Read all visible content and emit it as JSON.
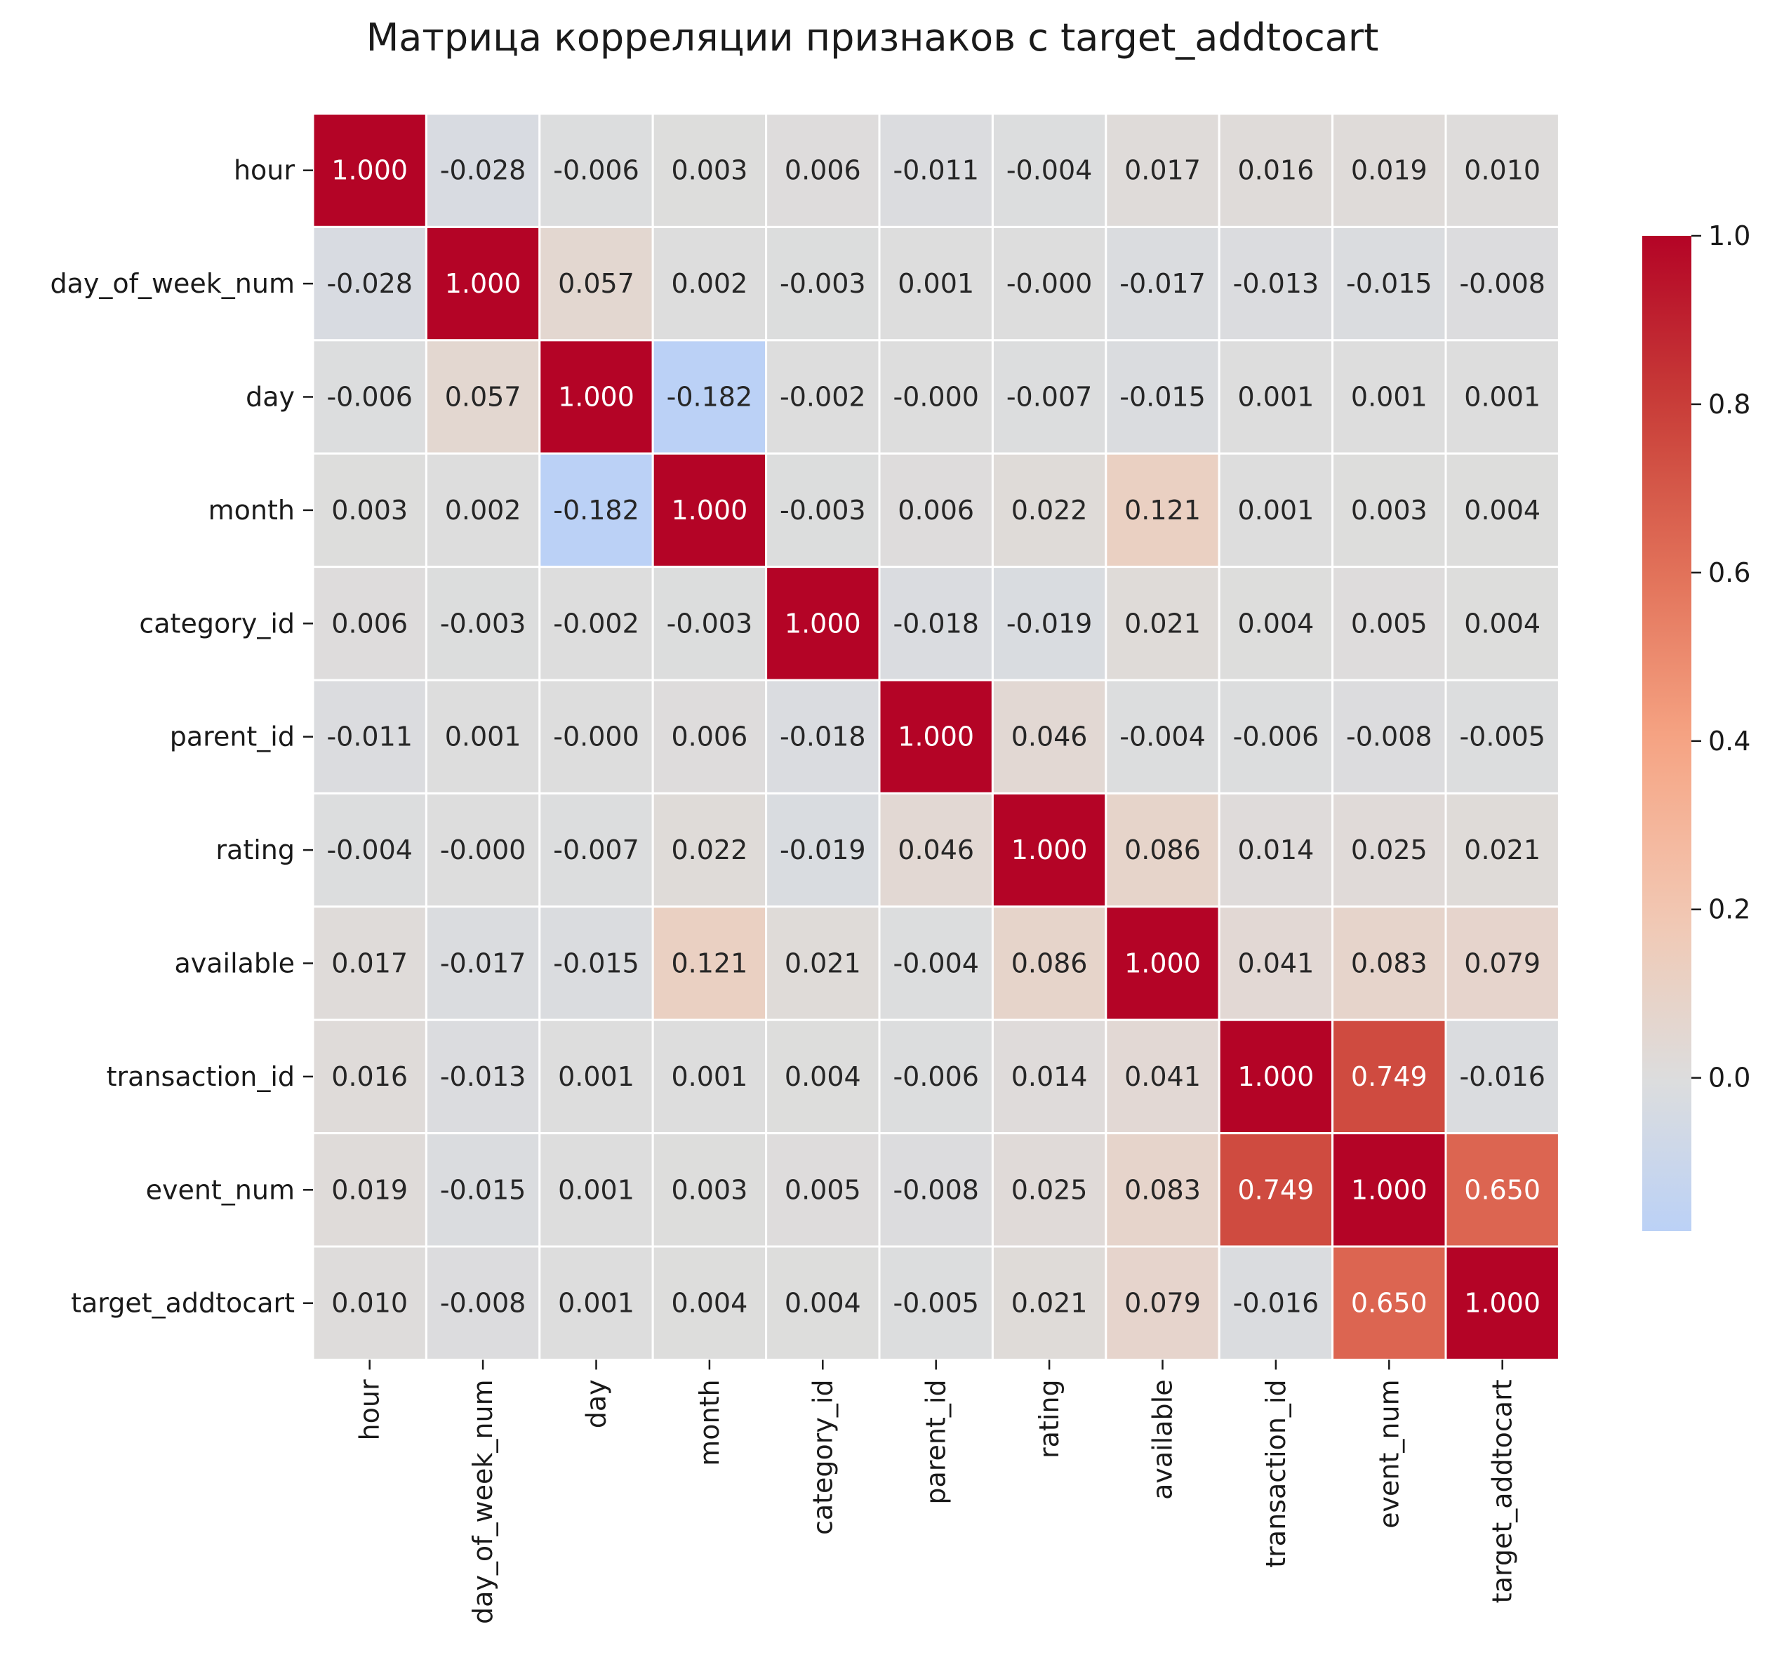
{
  "chart_data": {
    "type": "heatmap",
    "title": "Матрица корреляции признаков с target_addtocart",
    "labels": [
      "hour",
      "day_of_week_num",
      "day",
      "month",
      "category_id",
      "parent_id",
      "rating",
      "available",
      "transaction_id",
      "event_num",
      "target_addtocart"
    ],
    "values": [
      [
        "1.000",
        "-0.028",
        "-0.006",
        "0.003",
        "0.006",
        "-0.011",
        "-0.004",
        "0.017",
        "0.016",
        "0.019",
        "0.010"
      ],
      [
        "-0.028",
        "1.000",
        "0.057",
        "0.002",
        "-0.003",
        "0.001",
        "-0.000",
        "-0.017",
        "-0.013",
        "-0.015",
        "-0.008"
      ],
      [
        "-0.006",
        "0.057",
        "1.000",
        "-0.182",
        "-0.002",
        "-0.000",
        "-0.007",
        "-0.015",
        "0.001",
        "0.001",
        "0.001"
      ],
      [
        "0.003",
        "0.002",
        "-0.182",
        "1.000",
        "-0.003",
        "0.006",
        "0.022",
        "0.121",
        "0.001",
        "0.003",
        "0.004"
      ],
      [
        "0.006",
        "-0.003",
        "-0.002",
        "-0.003",
        "1.000",
        "-0.018",
        "-0.019",
        "0.021",
        "0.004",
        "0.005",
        "0.004"
      ],
      [
        "-0.011",
        "0.001",
        "-0.000",
        "0.006",
        "-0.018",
        "1.000",
        "0.046",
        "-0.004",
        "-0.006",
        "-0.008",
        "-0.005"
      ],
      [
        "-0.004",
        "-0.000",
        "-0.007",
        "0.022",
        "-0.019",
        "0.046",
        "1.000",
        "0.086",
        "0.014",
        "0.025",
        "0.021"
      ],
      [
        "0.017",
        "-0.017",
        "-0.015",
        "0.121",
        "0.021",
        "-0.004",
        "0.086",
        "1.000",
        "0.041",
        "0.083",
        "0.079"
      ],
      [
        "0.016",
        "-0.013",
        "0.001",
        "0.001",
        "0.004",
        "-0.006",
        "0.014",
        "0.041",
        "1.000",
        "0.749",
        "-0.016"
      ],
      [
        "0.019",
        "-0.015",
        "0.001",
        "0.003",
        "0.005",
        "-0.008",
        "0.025",
        "0.083",
        "0.749",
        "1.000",
        "0.650"
      ],
      [
        "0.010",
        "-0.008",
        "0.001",
        "0.004",
        "0.004",
        "-0.005",
        "0.021",
        "0.079",
        "-0.016",
        "0.650",
        "1.000"
      ]
    ],
    "colorbar": {
      "colormap": "coolwarm",
      "center": 0.0,
      "vmin": -0.182,
      "vmax": 1.0,
      "ticks": [
        "0.0",
        "0.2",
        "0.4",
        "0.6",
        "0.8",
        "1.0"
      ]
    },
    "colors": {
      "low": "#c5d6f2",
      "mid": "#dddddd",
      "high": "#b40426",
      "line": "#ffffff"
    }
  }
}
